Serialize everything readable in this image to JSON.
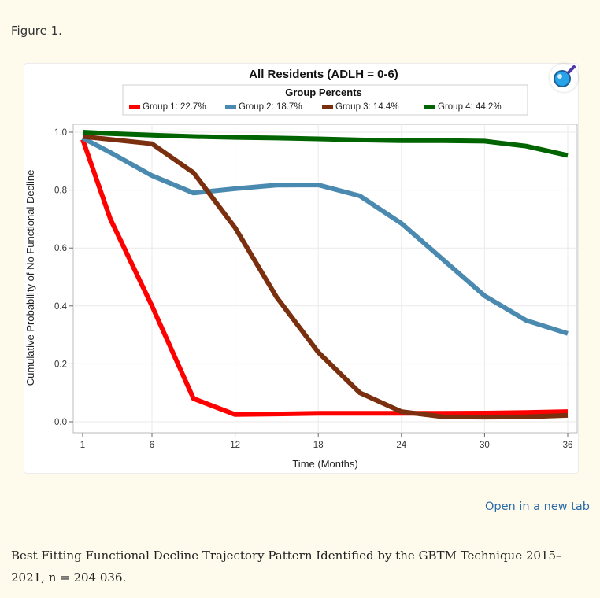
{
  "figure_label": "Figure 1.",
  "open_link": "Open in a new tab",
  "caption": "Best Fitting Functional Decline Trajectory Pattern Identified by the GBTM Technique 2015–2021, n = 204 036.",
  "zoom_icon": "magnifier-icon",
  "colors": {
    "group1": "#ff0000",
    "group2": "#4a8ab0",
    "group3": "#7a2f0e",
    "group4": "#006400"
  },
  "chart_data": {
    "type": "line",
    "title": "All Residents (ADLH = 0-6)",
    "legend_title": "Group Percents",
    "legend_position": "top",
    "xlabel": "Time (Months)",
    "ylabel": "Cumulative Probability of No Functional Decline",
    "xlim": [
      1,
      36
    ],
    "ylim": [
      0,
      1
    ],
    "x_ticks": [
      "1",
      "6",
      "12",
      "18",
      "24",
      "30",
      "36"
    ],
    "y_ticks": [
      "0.0",
      "0.2",
      "0.4",
      "0.6",
      "0.8",
      "1.0"
    ],
    "grid": true,
    "x": [
      1,
      3,
      6,
      9,
      12,
      15,
      18,
      21,
      24,
      27,
      30,
      33,
      36
    ],
    "series": [
      {
        "name": "Group 1: 22.7%",
        "color": "#ff0000",
        "values": [
          0.975,
          0.7,
          0.4,
          0.08,
          0.025,
          0.027,
          0.029,
          0.029,
          0.029,
          0.029,
          0.03,
          0.032,
          0.035
        ]
      },
      {
        "name": "Group 2: 18.7%",
        "color": "#4a8ab0",
        "values": [
          0.98,
          0.93,
          0.85,
          0.79,
          0.805,
          0.817,
          0.818,
          0.78,
          0.685,
          0.56,
          0.435,
          0.35,
          0.305
        ]
      },
      {
        "name": "Group 3: 14.4%",
        "color": "#7a2f0e",
        "values": [
          0.985,
          0.975,
          0.96,
          0.86,
          0.67,
          0.43,
          0.24,
          0.1,
          0.035,
          0.017,
          0.016,
          0.017,
          0.022
        ]
      },
      {
        "name": "Group 4: 44.2%",
        "color": "#006400",
        "values": [
          1.0,
          0.995,
          0.99,
          0.985,
          0.982,
          0.98,
          0.977,
          0.973,
          0.971,
          0.971,
          0.969,
          0.952,
          0.92
        ]
      }
    ]
  }
}
